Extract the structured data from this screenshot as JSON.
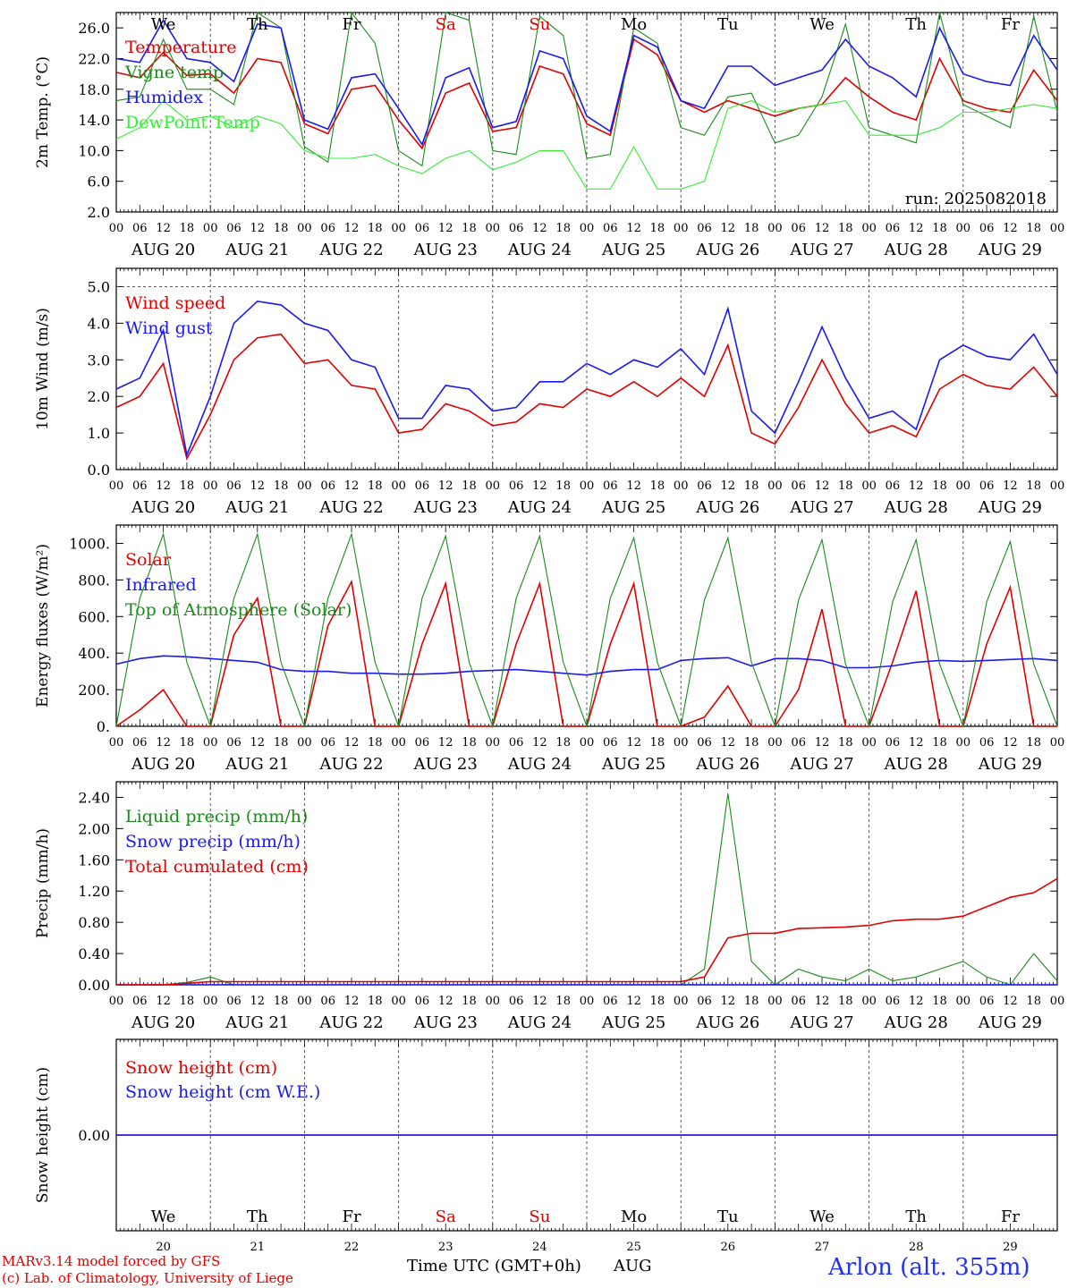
{
  "footer": {
    "model_line": "MARv3.14 model forced by GFS",
    "credit_line": "(c) Lab. of Climatology, University of Liege",
    "x_title": "Time UTC (GMT+0h)",
    "month": "AUG",
    "station": "Arlon (alt. 355m)"
  },
  "days": [
    {
      "weekday": "We",
      "date": "AUG 20",
      "num": "20",
      "weekend": false
    },
    {
      "weekday": "Th",
      "date": "AUG 21",
      "num": "21",
      "weekend": false
    },
    {
      "weekday": "Fr",
      "date": "AUG 22",
      "num": "22",
      "weekend": false
    },
    {
      "weekday": "Sa",
      "date": "AUG 23",
      "num": "23",
      "weekend": true
    },
    {
      "weekday": "Su",
      "date": "AUG 24",
      "num": "24",
      "weekend": true
    },
    {
      "weekday": "Mo",
      "date": "AUG 25",
      "num": "25",
      "weekend": false
    },
    {
      "weekday": "Tu",
      "date": "AUG 26",
      "num": "26",
      "weekend": false
    },
    {
      "weekday": "We",
      "date": "AUG 27",
      "num": "27",
      "weekend": false
    },
    {
      "weekday": "Th",
      "date": "AUG 28",
      "num": "28",
      "weekend": false
    },
    {
      "weekday": "Fr",
      "date": "AUG 29",
      "num": "29",
      "weekend": false
    }
  ],
  "hour_ticks": [
    "00",
    "06",
    "12",
    "18"
  ],
  "colors": {
    "red": "#e00000",
    "green": "#1a8a1a",
    "blue": "#1a1aee",
    "lightgreen": "#33ee33",
    "weekend": "#e00000"
  },
  "chart_data": [
    {
      "type": "line",
      "ylabel": "2m Temp. (°C)",
      "ylim": [
        2,
        28
      ],
      "yticks": [
        "26.0",
        "22.0",
        "18.0",
        "14.0",
        "10.0",
        "6.0",
        "2.0"
      ],
      "ytick_values": [
        26,
        22,
        18,
        14,
        10,
        6,
        2
      ],
      "annotation": "run: 2025082018",
      "x_hours": [
        0,
        6,
        12,
        18,
        24,
        30,
        36,
        42,
        48,
        54,
        60,
        66,
        72,
        78,
        84,
        90,
        96,
        102,
        108,
        114,
        120,
        126,
        132,
        138,
        144,
        150,
        156,
        162,
        168,
        174,
        180,
        186,
        192,
        198,
        204,
        210,
        216,
        222,
        228,
        234,
        240
      ],
      "series": [
        {
          "name": "Temperature",
          "color": "red",
          "values": [
            20.2,
            19.5,
            22.8,
            19.8,
            20.0,
            17.5,
            22.0,
            21.5,
            13.5,
            12.2,
            18.0,
            18.5,
            14.0,
            10.3,
            17.5,
            18.8,
            12.5,
            13.0,
            21.0,
            20.0,
            13.5,
            12.0,
            24.5,
            22.5,
            16.5,
            15.0,
            16.5,
            15.5,
            14.5,
            15.5,
            16.0,
            19.5,
            17.0,
            15.0,
            14.0,
            22.0,
            16.5,
            15.5,
            15.0,
            20.5,
            16.5
          ]
        },
        {
          "name": "Vigne temp",
          "color": "green",
          "values": [
            16.5,
            17.0,
            24.5,
            18.0,
            18.0,
            16.0,
            28.0,
            26.0,
            10.5,
            8.5,
            28.0,
            24.0,
            10.0,
            8.0,
            28.0,
            27.0,
            10.0,
            9.5,
            27.5,
            25.0,
            9.0,
            9.5,
            26.0,
            24.0,
            13.0,
            12.0,
            17.0,
            17.5,
            11.0,
            12.0,
            17.0,
            26.5,
            13.0,
            12.0,
            11.0,
            28.0,
            16.0,
            14.5,
            13.0,
            27.5,
            15.0
          ]
        },
        {
          "name": "Humidex",
          "color": "blue",
          "values": [
            22.0,
            21.5,
            27.0,
            22.0,
            21.5,
            19.0,
            26.5,
            26.0,
            14.0,
            12.8,
            19.5,
            20.0,
            15.5,
            10.8,
            19.5,
            20.8,
            13.0,
            13.8,
            23.0,
            22.0,
            14.5,
            12.5,
            25.0,
            23.5,
            16.5,
            15.5,
            21.0,
            21.0,
            18.5,
            19.5,
            20.5,
            24.5,
            21.0,
            19.5,
            17.0,
            26.0,
            20.0,
            19.0,
            18.5,
            25.0,
            20.5
          ]
        },
        {
          "name": "DewPoint Temp",
          "color": "lightgreen",
          "values": [
            11.5,
            13.0,
            16.5,
            14.0,
            14.5,
            13.0,
            14.5,
            13.5,
            10.0,
            9.0,
            9.0,
            9.5,
            8.0,
            7.0,
            9.0,
            10.0,
            7.5,
            8.5,
            10.0,
            10.0,
            5.0,
            5.0,
            10.5,
            5.0,
            5.0,
            6.0,
            15.5,
            16.5,
            15.0,
            15.5,
            16.0,
            16.5,
            12.0,
            12.0,
            12.0,
            13.0,
            15.0,
            15.0,
            15.5,
            16.0,
            15.5
          ]
        }
      ]
    },
    {
      "type": "line",
      "ylabel": "10m Wind (m/s)",
      "ylim": [
        0,
        5.5
      ],
      "yticks": [
        "5.0",
        "4.0",
        "3.0",
        "2.0",
        "1.0",
        "0.0"
      ],
      "ytick_values": [
        5,
        4,
        3,
        2,
        1,
        0
      ],
      "x_hours": [
        0,
        6,
        12,
        18,
        24,
        30,
        36,
        42,
        48,
        54,
        60,
        66,
        72,
        78,
        84,
        90,
        96,
        102,
        108,
        114,
        120,
        126,
        132,
        138,
        144,
        150,
        156,
        162,
        168,
        174,
        180,
        186,
        192,
        198,
        204,
        210,
        216,
        222,
        228,
        234,
        240
      ],
      "series": [
        {
          "name": "Wind speed",
          "color": "red",
          "values": [
            1.7,
            2.0,
            2.9,
            0.3,
            1.5,
            3.0,
            3.6,
            3.7,
            2.9,
            3.0,
            2.3,
            2.2,
            1.0,
            1.1,
            1.8,
            1.6,
            1.2,
            1.3,
            1.8,
            1.7,
            2.2,
            2.0,
            2.4,
            2.0,
            2.5,
            2.0,
            3.4,
            1.0,
            0.7,
            1.7,
            3.0,
            1.8,
            1.0,
            1.2,
            0.9,
            2.2,
            2.6,
            2.3,
            2.2,
            2.8,
            2.0
          ]
        },
        {
          "name": "Wind gust",
          "color": "blue",
          "values": [
            2.2,
            2.5,
            3.8,
            0.4,
            2.0,
            4.0,
            4.6,
            4.5,
            4.0,
            3.8,
            3.0,
            2.8,
            1.4,
            1.4,
            2.3,
            2.2,
            1.6,
            1.7,
            2.4,
            2.4,
            2.9,
            2.6,
            3.0,
            2.8,
            3.3,
            2.6,
            4.4,
            1.6,
            1.0,
            2.4,
            3.9,
            2.5,
            1.4,
            1.6,
            1.1,
            3.0,
            3.4,
            3.1,
            3.0,
            3.7,
            2.6
          ]
        }
      ]
    },
    {
      "type": "line",
      "ylabel": "Energy fluxes (W/m²)",
      "ylim": [
        0,
        1100
      ],
      "yticks": [
        "1000.",
        "800.",
        "600.",
        "400.",
        "200.",
        "0."
      ],
      "ytick_values": [
        1000,
        800,
        600,
        400,
        200,
        0
      ],
      "x_hours": [
        0,
        6,
        12,
        18,
        24,
        30,
        36,
        42,
        48,
        54,
        60,
        66,
        72,
        78,
        84,
        90,
        96,
        102,
        108,
        114,
        120,
        126,
        132,
        138,
        144,
        150,
        156,
        162,
        168,
        174,
        180,
        186,
        192,
        198,
        204,
        210,
        216,
        222,
        228,
        234,
        240
      ],
      "series": [
        {
          "name": "Solar",
          "color": "red",
          "values": [
            0,
            90,
            200,
            0,
            0,
            500,
            700,
            0,
            0,
            550,
            790,
            0,
            0,
            450,
            780,
            0,
            0,
            450,
            780,
            0,
            0,
            450,
            780,
            0,
            0,
            50,
            220,
            0,
            0,
            200,
            640,
            0,
            0,
            350,
            740,
            0,
            0,
            450,
            760,
            0,
            0
          ]
        },
        {
          "name": "Infrared",
          "color": "blue",
          "values": [
            340,
            370,
            385,
            380,
            370,
            360,
            350,
            310,
            300,
            300,
            290,
            290,
            285,
            285,
            290,
            300,
            305,
            310,
            300,
            290,
            280,
            300,
            310,
            310,
            360,
            370,
            375,
            330,
            370,
            370,
            360,
            320,
            320,
            330,
            350,
            360,
            355,
            360,
            365,
            370,
            360
          ]
        },
        {
          "name": "Top of Atmosphere (Solar)",
          "color": "green",
          "values": [
            0,
            700,
            1050,
            350,
            0,
            700,
            1050,
            350,
            0,
            700,
            1050,
            350,
            0,
            700,
            1040,
            350,
            0,
            700,
            1040,
            350,
            0,
            700,
            1030,
            350,
            0,
            690,
            1030,
            350,
            0,
            690,
            1020,
            340,
            0,
            680,
            1020,
            340,
            0,
            680,
            1010,
            340,
            0
          ]
        }
      ]
    },
    {
      "type": "line",
      "ylabel": "Precip (mm/h)",
      "ylim": [
        0,
        2.6
      ],
      "yticks": [
        "2.40",
        "2.00",
        "1.60",
        "1.20",
        "0.80",
        "0.40",
        "0.00"
      ],
      "ytick_values": [
        2.4,
        2.0,
        1.6,
        1.2,
        0.8,
        0.4,
        0
      ],
      "x_hours": [
        0,
        6,
        12,
        18,
        24,
        30,
        36,
        42,
        48,
        54,
        60,
        66,
        72,
        78,
        84,
        90,
        96,
        102,
        108,
        114,
        120,
        126,
        132,
        138,
        144,
        150,
        156,
        162,
        168,
        174,
        180,
        186,
        192,
        198,
        204,
        210,
        216,
        222,
        228,
        234,
        240
      ],
      "series": [
        {
          "name": "Liquid precip (mm/h)",
          "color": "green",
          "values": [
            0,
            0,
            0,
            0.03,
            0.1,
            0,
            0,
            0,
            0,
            0,
            0,
            0,
            0,
            0,
            0,
            0,
            0,
            0,
            0,
            0,
            0,
            0,
            0,
            0,
            0,
            0.2,
            2.45,
            0.3,
            0,
            0.2,
            0.1,
            0.05,
            0.2,
            0.05,
            0.1,
            0.2,
            0.3,
            0.1,
            0,
            0.4,
            0.05
          ]
        },
        {
          "name": "Snow precip (mm/h)",
          "color": "blue",
          "values": [
            0,
            0,
            0,
            0,
            0,
            0,
            0,
            0,
            0,
            0,
            0,
            0,
            0,
            0,
            0,
            0,
            0,
            0,
            0,
            0,
            0,
            0,
            0,
            0,
            0,
            0,
            0,
            0,
            0,
            0,
            0,
            0,
            0,
            0,
            0,
            0,
            0,
            0,
            0,
            0,
            0
          ]
        },
        {
          "name": "Total cumulated (cm)",
          "color": "red",
          "values": [
            0,
            0,
            0,
            0.02,
            0.04,
            0.04,
            0.04,
            0.04,
            0.04,
            0.04,
            0.04,
            0.04,
            0.04,
            0.04,
            0.04,
            0.04,
            0.04,
            0.04,
            0.04,
            0.04,
            0.04,
            0.04,
            0.04,
            0.04,
            0.04,
            0.1,
            0.6,
            0.66,
            0.66,
            0.72,
            0.73,
            0.74,
            0.76,
            0.82,
            0.84,
            0.84,
            0.88,
            1.0,
            1.12,
            1.18,
            1.36
          ]
        }
      ]
    },
    {
      "type": "line",
      "ylabel": "Snow height (cm)",
      "ylim": [
        -1,
        1
      ],
      "yticks": [
        "0.00"
      ],
      "ytick_values": [
        0
      ],
      "x_hours": [
        0,
        240
      ],
      "series": [
        {
          "name": "Snow height (cm)",
          "color": "red",
          "values": [
            0,
            0
          ]
        },
        {
          "name": "Snow height (cm W.E.)",
          "color": "blue",
          "values": [
            0,
            0
          ]
        }
      ]
    }
  ]
}
